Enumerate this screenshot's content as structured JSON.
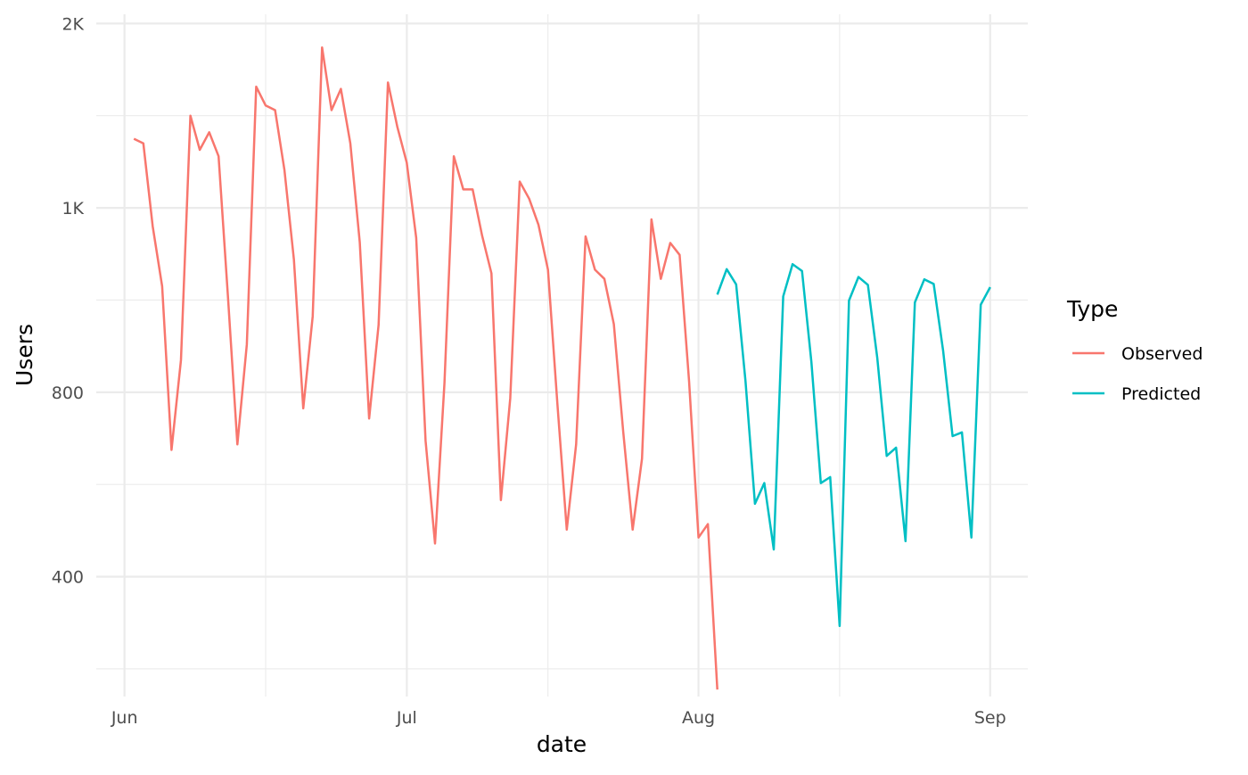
{
  "chart_data": {
    "type": "line",
    "xlabel": "date",
    "ylabel": "Users",
    "x_ticks": [
      {
        "label": "Jun",
        "date": "2023-06-01"
      },
      {
        "label": "Jul",
        "date": "2023-07-01"
      },
      {
        "label": "Aug",
        "date": "2023-08-01"
      },
      {
        "label": "Sep",
        "date": "2023-09-01"
      }
    ],
    "x_minor_dates": [
      "2023-06-16",
      "2023-07-16",
      "2023-08-16"
    ],
    "y_ticks": [
      {
        "label": "400",
        "value": 400
      },
      {
        "label": "800",
        "value": 800
      },
      {
        "label": "1K",
        "value": 1200
      },
      {
        "label": "2K",
        "value": 1600
      }
    ],
    "y_minor_values": [
      200,
      600,
      1000,
      1400
    ],
    "xlim": [
      "2023-05-29",
      "2023-09-05"
    ],
    "ylim": [
      140,
      1620
    ],
    "grid": true,
    "legend": {
      "title": "Type",
      "position": "right",
      "entries": [
        {
          "label": "Observed",
          "color": "#F8766D"
        },
        {
          "label": "Predicted",
          "color": "#00BFC4"
        }
      ]
    },
    "series": [
      {
        "name": "Observed",
        "color": "#F8766D",
        "points": [
          [
            "2023-06-02",
            1350
          ],
          [
            "2023-06-03",
            1340
          ],
          [
            "2023-06-04",
            1160
          ],
          [
            "2023-06-05",
            1030
          ],
          [
            "2023-06-06",
            675
          ],
          [
            "2023-06-07",
            870
          ],
          [
            "2023-06-08",
            1400
          ],
          [
            "2023-06-09",
            1326
          ],
          [
            "2023-06-10",
            1364
          ],
          [
            "2023-06-11",
            1312
          ],
          [
            "2023-06-12",
            1005
          ],
          [
            "2023-06-13",
            687
          ],
          [
            "2023-06-14",
            904
          ],
          [
            "2023-06-15",
            1463
          ],
          [
            "2023-06-16",
            1422
          ],
          [
            "2023-06-17",
            1412
          ],
          [
            "2023-06-18",
            1282
          ],
          [
            "2023-06-19",
            1088
          ],
          [
            "2023-06-20",
            765
          ],
          [
            "2023-06-21",
            965
          ],
          [
            "2023-06-22",
            1548
          ],
          [
            "2023-06-23",
            1412
          ],
          [
            "2023-06-24",
            1458
          ],
          [
            "2023-06-25",
            1340
          ],
          [
            "2023-06-26",
            1125
          ],
          [
            "2023-06-27",
            743
          ],
          [
            "2023-06-28",
            946
          ],
          [
            "2023-06-29",
            1472
          ],
          [
            "2023-06-30",
            1375
          ],
          [
            "2023-07-01",
            1298
          ],
          [
            "2023-07-02",
            1135
          ],
          [
            "2023-07-03",
            695
          ],
          [
            "2023-07-04",
            472
          ],
          [
            "2023-07-05",
            820
          ],
          [
            "2023-07-06",
            1312
          ],
          [
            "2023-07-07",
            1240
          ],
          [
            "2023-07-08",
            1240
          ],
          [
            "2023-07-09",
            1140
          ],
          [
            "2023-07-10",
            1058
          ],
          [
            "2023-07-11",
            566
          ],
          [
            "2023-07-12",
            787
          ],
          [
            "2023-07-13",
            1257
          ],
          [
            "2023-07-14",
            1220
          ],
          [
            "2023-07-15",
            1163
          ],
          [
            "2023-07-16",
            1066
          ],
          [
            "2023-07-17",
            777
          ],
          [
            "2023-07-18",
            502
          ],
          [
            "2023-07-19",
            687
          ],
          [
            "2023-07-20",
            1138
          ],
          [
            "2023-07-21",
            1066
          ],
          [
            "2023-07-22",
            1046
          ],
          [
            "2023-07-23",
            948
          ],
          [
            "2023-07-24",
            715
          ],
          [
            "2023-07-25",
            502
          ],
          [
            "2023-07-26",
            656
          ],
          [
            "2023-07-27",
            1175
          ],
          [
            "2023-07-28",
            1046
          ],
          [
            "2023-07-29",
            1124
          ],
          [
            "2023-07-30",
            1098
          ],
          [
            "2023-07-31",
            824
          ],
          [
            "2023-08-01",
            485
          ],
          [
            "2023-08-02",
            514
          ],
          [
            "2023-08-03",
            155
          ]
        ]
      },
      {
        "name": "Predicted",
        "color": "#00BFC4",
        "points": [
          [
            "2023-08-03",
            1012
          ],
          [
            "2023-08-04",
            1067
          ],
          [
            "2023-08-05",
            1034
          ],
          [
            "2023-08-06",
            824
          ],
          [
            "2023-08-07",
            558
          ],
          [
            "2023-08-08",
            603
          ],
          [
            "2023-08-09",
            459
          ],
          [
            "2023-08-10",
            1008
          ],
          [
            "2023-08-11",
            1078
          ],
          [
            "2023-08-12",
            1063
          ],
          [
            "2023-08-13",
            866
          ],
          [
            "2023-08-14",
            603
          ],
          [
            "2023-08-15",
            616
          ],
          [
            "2023-08-16",
            293
          ],
          [
            "2023-08-17",
            999
          ],
          [
            "2023-08-18",
            1050
          ],
          [
            "2023-08-19",
            1033
          ],
          [
            "2023-08-20",
            875
          ],
          [
            "2023-08-21",
            662
          ],
          [
            "2023-08-22",
            680
          ],
          [
            "2023-08-23",
            477
          ],
          [
            "2023-08-24",
            995
          ],
          [
            "2023-08-25",
            1045
          ],
          [
            "2023-08-26",
            1035
          ],
          [
            "2023-08-27",
            890
          ],
          [
            "2023-08-28",
            705
          ],
          [
            "2023-08-29",
            713
          ],
          [
            "2023-08-30",
            485
          ],
          [
            "2023-08-31",
            990
          ],
          [
            "2023-09-01",
            1028
          ]
        ]
      }
    ]
  }
}
